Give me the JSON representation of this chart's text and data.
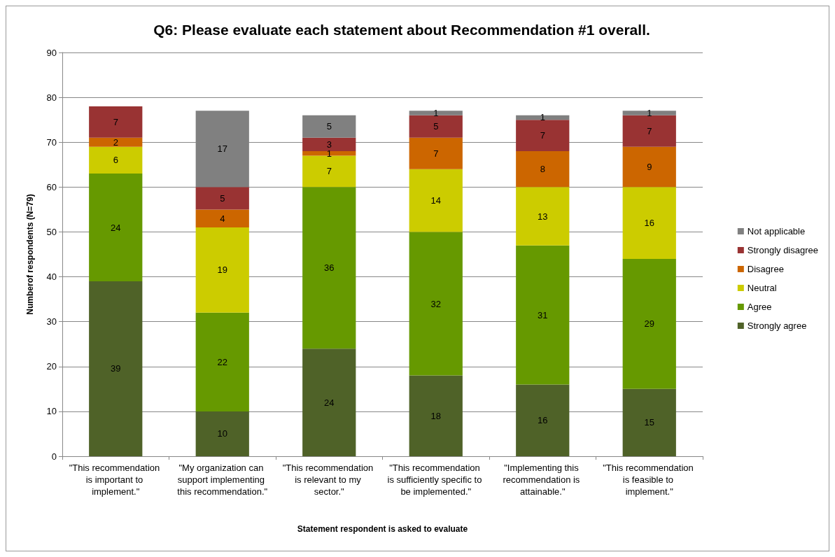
{
  "chart_data": {
    "type": "bar",
    "stacked": true,
    "title": "Q6: Please evaluate each statement about Recommendation #1 overall.",
    "xlabel": "Statement respondent is asked to evaluate",
    "ylabel": "Numberof respondents (N=79)",
    "categories": [
      "\"This recommendation is important to implement.\"",
      "\"My organization can support implementing this recommendation.\"",
      "\"This recommendation is relevant to my sector.\"",
      "\"This recommendation is sufficiently specific to be implemented.\"",
      "\"Implementing this recommendation is attainable.\"",
      "\"This recommendation is feasible to implement.\""
    ],
    "series": [
      {
        "name": "Strongly agree",
        "color": "#4f6228",
        "values": [
          39,
          10,
          24,
          18,
          16,
          15
        ]
      },
      {
        "name": "Agree",
        "color": "#669900",
        "values": [
          24,
          22,
          36,
          32,
          31,
          29
        ]
      },
      {
        "name": "Neutral",
        "color": "#cccc00",
        "values": [
          6,
          19,
          7,
          14,
          13,
          16
        ]
      },
      {
        "name": "Disagree",
        "color": "#cc6600",
        "values": [
          2,
          4,
          1,
          7,
          8,
          9
        ]
      },
      {
        "name": "Strongly disagree",
        "color": "#993333",
        "values": [
          7,
          5,
          3,
          5,
          7,
          7
        ]
      },
      {
        "name": "Not applicable",
        "color": "#808080",
        "values": [
          null,
          17,
          5,
          1,
          1,
          1
        ]
      }
    ],
    "ylim": [
      0,
      90
    ],
    "yticks": [
      0,
      10,
      20,
      30,
      40,
      50,
      60,
      70,
      80,
      90
    ],
    "grid": "y",
    "legend": "right",
    "data_labels": true
  }
}
